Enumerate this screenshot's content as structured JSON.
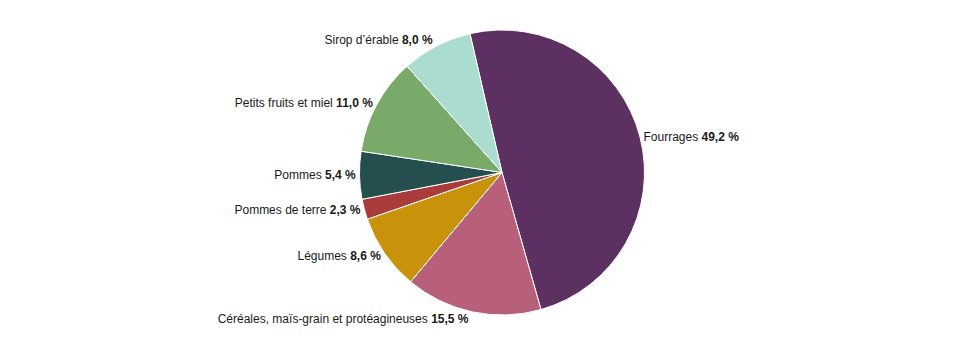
{
  "chart_data": {
    "type": "pie",
    "categories": [
      "Fourrages",
      "Céréales, maïs-grain et protéagineuses",
      "Légumes",
      "Pommes de terre",
      "Pommes",
      "Petits fruits et miel",
      "Sirop d’érable"
    ],
    "values": [
      49.2,
      15.5,
      8.6,
      2.3,
      5.4,
      11.0,
      8.0
    ],
    "value_labels": [
      "49,2 %",
      "15,5 %",
      "8,6 %",
      "2,3 %",
      "5,4 %",
      "11,0 %",
      "8,0 %"
    ],
    "colors": [
      "#5c3060",
      "#b8607a",
      "#c8920a",
      "#aa3b3b",
      "#254e4e",
      "#7aaa6a",
      "#aaddd0"
    ],
    "data_labels": true
  }
}
